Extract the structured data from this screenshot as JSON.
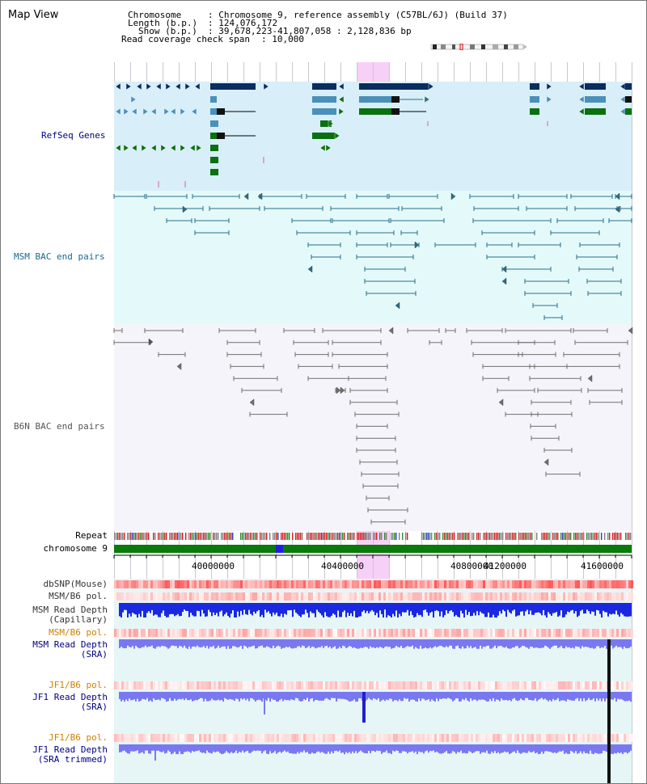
{
  "title": "Map View",
  "info": {
    "chromosome_label": "Chromosome",
    "chromosome_value": ": Chromosome 9, reference assembly (C57BL/6J) (Build 37)",
    "length_label": "Length (b.p.)",
    "length_value": ": 124,076,172",
    "show_label": "Show (b.p.)",
    "show_value": ": 39,678,223-41,807,058 : 2,128,836 bp",
    "read_label": "Read coverage check span",
    "read_value": ": 10,000"
  },
  "tracks": {
    "refseq": "RefSeq Genes",
    "msm_bac": "MSM BAC end pairs",
    "b6n_bac": "B6N BAC end pairs",
    "repeat": "Repeat",
    "chromosome": "chromosome 9",
    "dbsnp": "dbSNP(Mouse)",
    "msm_b6_pol_1": "MSM/B6 pol.",
    "msm_read_cap_1": "MSM Read Depth",
    "msm_read_cap_2": "(Capillary)",
    "msm_b6_pol_2": "MSM/B6 pol.",
    "msm_read_sra_1": "MSM Read Depth",
    "msm_read_sra_2": "(SRA)",
    "jf1_b6_pol_1": "JF1/B6 pol.",
    "jf1_read_sra_1": "JF1 Read Depth",
    "jf1_read_sra_2": "(SRA)",
    "jf1_b6_pol_2": "JF1/B6 pol.",
    "jf1_read_trim_1": "JF1 Read Depth",
    "jf1_read_trim_2": "(SRA trimmed)"
  },
  "axis": {
    "ticks": [
      "40000000",
      "40400000",
      "40800000",
      "41200000",
      "41600000"
    ]
  },
  "colors": {
    "refseq_bg": "#d8eef8",
    "msm_bg": "#e4fafa",
    "b6n_bg": "#f4f4fa",
    "highlight": "#f0aaf0",
    "navy": "#0a2c60",
    "steel": "#4a90b8",
    "green": "#0a7010",
    "teal_line": "#2a6e88",
    "gray_line": "#707070",
    "blue_depth": "#1a28e0",
    "violet_depth": "#7a78f0",
    "label_navy": "#000080",
    "label_teal": "#1a6a8a",
    "label_orange": "#d08000"
  }
}
